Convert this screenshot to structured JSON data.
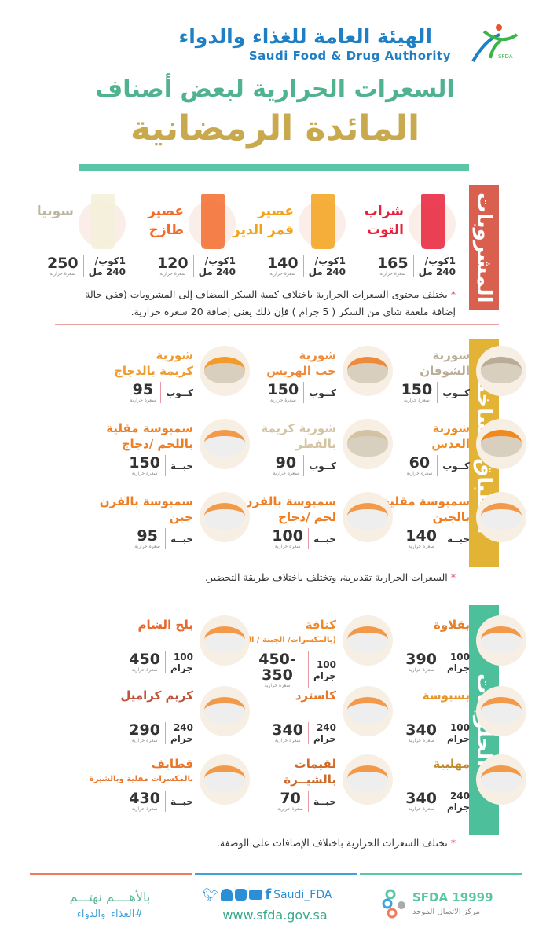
{
  "header": {
    "org_ar": "الهيئة العامة للغذاء والدواء",
    "org_en": "Saudi Food & Drug Authority",
    "logo_text": "SFDA",
    "title_line1": "السعرات الحرارية لبعض أصناف",
    "title_line2": "المائدة الرمضانية"
  },
  "colors": {
    "drinks": "#d9604f",
    "hot": "#e2b335",
    "sweets": "#4dbf9a",
    "title_green": "#4fb38f",
    "title_gold": "#c8a94e"
  },
  "sections": [
    {
      "title": "المشروبات",
      "note": "يختلف محتوى السعرات الحرارية باختلاف كمية السكر المضاف إلى المشروبات (ففي حالة إضافة ملعقة شاي من السكر ( 5 جرام ) فإن ذلك يعني إضافة 20 سعرة حرارية.",
      "items": [
        {
          "name": [
            "شراب",
            "التوت"
          ],
          "color": "#e8203a",
          "unit": [
            "1كوب/",
            "240 مل"
          ],
          "calories": "165",
          "cal_label": "سعرة حرارية",
          "icon": "berry-juice-glass-icon"
        },
        {
          "name": [
            "عصير",
            "قمر الدين"
          ],
          "color": "#f5a21b",
          "unit": [
            "1كوب/",
            "240 مل"
          ],
          "calories": "140",
          "cal_label": "سعرة حرارية",
          "icon": "apricot-juice-glass-icon"
        },
        {
          "name": [
            "عصير",
            "طازج"
          ],
          "color": "#f36b2b",
          "unit": [
            "1كوب/",
            "240 مل"
          ],
          "calories": "120",
          "cal_label": "سعرة حرارية",
          "icon": "fresh-juice-glass-icon"
        },
        {
          "name": [
            "سوبيا"
          ],
          "color": "#bdb8a4",
          "unit": [
            "1كوب/",
            "240 مل"
          ],
          "calories": "250",
          "cal_label": "سعرة حرارية",
          "icon": "sobia-glass-icon"
        }
      ]
    },
    {
      "title": "الأطباق الساخنة",
      "note": "السعرات الحرارية تقديرية، وتختلف باختلاف طريقة التحضير.",
      "items": [
        {
          "name": [
            "شوربة",
            "الشوفان"
          ],
          "color": "#b9ad97",
          "unit": [
            "كــوب"
          ],
          "calories": "150",
          "cal_label": "سعرة حرارية",
          "icon": "oat-soup-bowl-icon"
        },
        {
          "name": [
            "شوربة",
            "حب الهريس"
          ],
          "color": "#ef8a3a",
          "unit": [
            "كــوب"
          ],
          "calories": "150",
          "cal_label": "سعرة حرارية",
          "icon": "harees-soup-bowl-icon"
        },
        {
          "name": [
            "شوربة",
            "كريمة بالدجاج"
          ],
          "color": "#f29a2a",
          "unit": [
            "كــوب"
          ],
          "calories": "95",
          "cal_label": "سعرة حرارية",
          "icon": "chicken-cream-soup-bowl-icon"
        },
        {
          "name": [
            "شوربة",
            "العدس"
          ],
          "color": "#f08a1e",
          "unit": [
            "كــوب"
          ],
          "calories": "60",
          "cal_label": "سعرة حرارية",
          "icon": "lentil-soup-bowl-icon"
        },
        {
          "name": [
            "شوربة كريمة",
            "بالفطر"
          ],
          "color": "#d3c3a3",
          "unit": [
            "كــوب"
          ],
          "calories": "90",
          "cal_label": "سعرة حرارية",
          "icon": "mushroom-soup-bowl-icon"
        },
        {
          "name": [
            "سمبوسة مقلية",
            "باللحم /دجاج"
          ],
          "color": "#ef7d22",
          "unit": [
            "حبــة"
          ],
          "calories": "150",
          "cal_label": "سعرة حرارية",
          "icon": "fried-samosa-plate-icon"
        },
        {
          "name": [
            "سمبوسة مقلية",
            "بالجبن"
          ],
          "color": "#ef7d22",
          "unit": [
            "حبــة"
          ],
          "calories": "140",
          "cal_label": "سعرة حرارية",
          "icon": "cheese-samosa-plate-icon"
        },
        {
          "name": [
            "سمبوسة بالفرن",
            "لحم /دجاج"
          ],
          "color": "#ef7d22",
          "unit": [
            "حبــة"
          ],
          "calories": "100",
          "cal_label": "سعرة حرارية",
          "icon": "baked-samosa-plate-icon"
        },
        {
          "name": [
            "سمبوسة بالفرن",
            "جبن"
          ],
          "color": "#ef7d22",
          "unit": [
            "حبــة"
          ],
          "calories": "95",
          "cal_label": "سعرة حرارية",
          "icon": "baked-cheese-samosa-plate-icon"
        }
      ]
    },
    {
      "title": "الحلويـات",
      "note": "تختلف السعرات الحرارية باختلاف الإضافات على الوصفة.",
      "items": [
        {
          "name": [
            "بقلاوة"
          ],
          "color": "#e47f2b",
          "unit": [
            "100",
            "جرام"
          ],
          "calories": "390",
          "cal_label": "سعرة حرارية",
          "icon": "baklava-plate-icon"
        },
        {
          "name": [
            "كنافة",
            "(بالمكسرات/ الجبنة / القشطة)"
          ],
          "color": "#f0882a",
          "unit": [
            "100",
            "جرام"
          ],
          "calories": "450-350",
          "cal_label": "سعرة حرارية",
          "icon": "kunafa-plate-icon"
        },
        {
          "name": [
            "بلح الشام"
          ],
          "color": "#e8682a",
          "unit": [
            "100",
            "جرام"
          ],
          "calories": "450",
          "cal_label": "سعرة حرارية",
          "icon": "balah-alsham-plate-icon"
        },
        {
          "name": [
            "بسبوسة"
          ],
          "color": "#e8962b",
          "unit": [
            "100",
            "جرام"
          ],
          "calories": "340",
          "cal_label": "سعرة حرارية",
          "icon": "basbousa-plate-icon"
        },
        {
          "name": [
            "كاسترد"
          ],
          "color": "#e8762b",
          "unit": [
            "240",
            "جرام"
          ],
          "calories": "340",
          "cal_label": "سعرة حرارية",
          "icon": "custard-cup-icon"
        },
        {
          "name": [
            "كريم كراميل"
          ],
          "color": "#c0533a",
          "unit": [
            "240",
            "جرام"
          ],
          "calories": "290",
          "cal_label": "سعرة حرارية",
          "icon": "creme-caramel-icon"
        },
        {
          "name": [
            "مهلبية"
          ],
          "color": "#c08a2e",
          "unit": [
            "240",
            "جرام"
          ],
          "calories": "340",
          "cal_label": "سعرة حرارية",
          "icon": "muhallabia-bowl-icon"
        },
        {
          "name": [
            "لقيمات",
            "بالشيــرة"
          ],
          "color": "#d06a2a",
          "unit": [
            "حبــة"
          ],
          "calories": "70",
          "cal_label": "سعرة حرارية",
          "icon": "luqaimat-plate-icon"
        },
        {
          "name": [
            "قطايف",
            "بالمكسرات مقلية وبالشيرة"
          ],
          "color": "#e8762b",
          "unit": [
            "حبــة"
          ],
          "calories": "430",
          "cal_label": "سعرة حرارية",
          "icon": "qatayef-plate-icon"
        }
      ]
    }
  ],
  "footer": {
    "slogan": "بالأهــــم نهتـــم",
    "hashtag": "#الغذاء_والدواء",
    "handle": "Saudi_FDA",
    "website": "www.sfda.gov.sa",
    "hotline": "SFDA 19999",
    "hotline_label": "مركز الاتصال الموحد"
  }
}
